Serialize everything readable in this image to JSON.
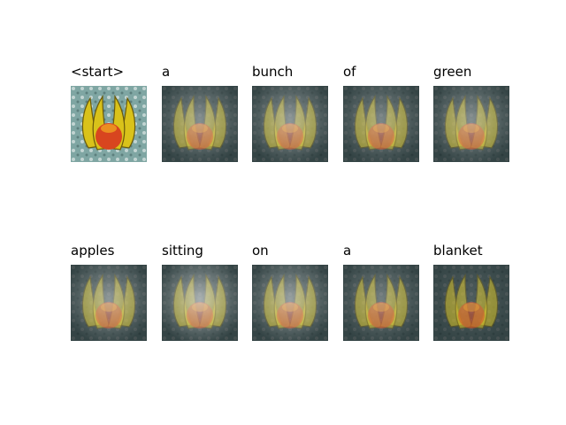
{
  "caption_words": [
    {
      "text": "<start>",
      "attention": 0.0,
      "style": "original"
    },
    {
      "text": "a",
      "attention": 0.45,
      "style": "attention"
    },
    {
      "text": "bunch",
      "attention": 0.5,
      "style": "attention"
    },
    {
      "text": "of",
      "attention": 0.4,
      "style": "attention"
    },
    {
      "text": "green",
      "attention": 0.45,
      "style": "attention"
    },
    {
      "text": "apples",
      "attention": 0.5,
      "style": "attention"
    },
    {
      "text": "sitting",
      "attention": 0.65,
      "style": "attention"
    },
    {
      "text": "on",
      "attention": 0.55,
      "style": "attention"
    },
    {
      "text": "a",
      "attention": 0.35,
      "style": "attention"
    },
    {
      "text": "blanket",
      "attention": 0.15,
      "style": "attention"
    }
  ],
  "colors": {
    "background": "#ffffff",
    "text": "#000000",
    "banana": "#d9c21a",
    "banana_dark": "#6b5a0a",
    "apple": "#d8451f",
    "apple_highlight": "#f0a020",
    "cloth": "#7fa6a3",
    "dark_bg": "#1b2426",
    "attention_glow": "#e9ecec"
  }
}
